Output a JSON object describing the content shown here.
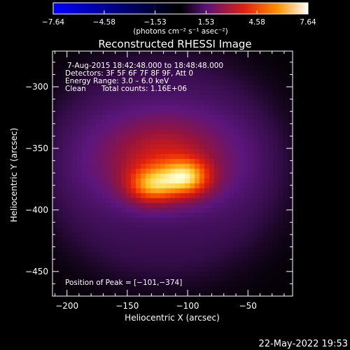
{
  "chart_data": {
    "type": "heatmap",
    "title": "Reconstructed RHESSI Image",
    "xlabel": "Heliocentric X (arcsec)",
    "ylabel": "Heliocentric Y (arcsec)",
    "xlim": [
      -212,
      -13
    ],
    "ylim": [
      -470,
      -271
    ],
    "x_ticks": [
      -200,
      -150,
      -100,
      -50
    ],
    "y_ticks": [
      -300,
      -350,
      -400,
      -450
    ],
    "colorbar": {
      "range": [
        -7.64,
        7.64
      ],
      "tick_values": [
        -7.64,
        -4.58,
        -1.53,
        1.53,
        4.58,
        7.64
      ],
      "tick_labels": [
        "−7.64",
        "−4.58",
        "−1.53",
        "1.53",
        "4.58",
        "7.64"
      ],
      "unit_label": "(photons cm⁻² s⁻¹ asec⁻²)"
    },
    "annotations": {
      "time": "7‑Aug‑2015 18:42:48.000 to 18:48:48.000",
      "detectors": "Detectors: 3F 5F 6F 7F 8F 9F, Att 0",
      "energy": "Energy Range: 3.0 – 6.0 keV",
      "method": "Clean",
      "counts": "Total counts: 1.16E+06",
      "peak": "Position of Peak = [−101,−374]"
    },
    "peak_position": [
      -101,
      -374
    ],
    "sources": [
      {
        "x": -120,
        "y": -360,
        "sx": 40,
        "sy": 28,
        "amp": 3.2
      },
      {
        "x": -130,
        "y": -380,
        "sx": 14,
        "sy": 10,
        "amp": 3.0
      },
      {
        "x": -101,
        "y": -374,
        "sx": 14,
        "sy": 10,
        "amp": 3.5
      }
    ],
    "halo": {
      "x": -120,
      "y": -365,
      "sx": 75,
      "sy": 68,
      "amp": 0.85
    },
    "colormap": [
      "#0000ff",
      "#000000",
      "#5a1278",
      "#e02010",
      "#ff9000",
      "#ffffff"
    ]
  },
  "footer": {
    "date": "22‑May‑2022 19:53"
  }
}
